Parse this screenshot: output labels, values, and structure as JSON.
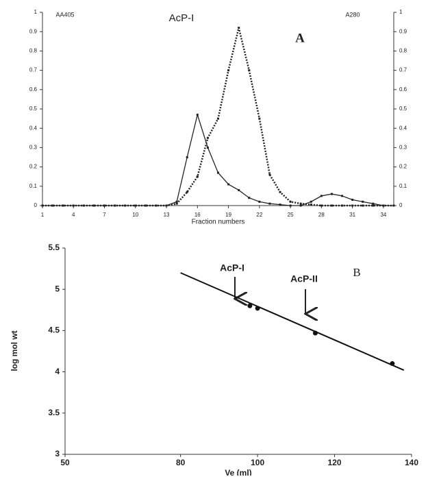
{
  "chart_data": [
    {
      "type": "line",
      "x_label": "Fraction numbers",
      "y_label": "AA405",
      "y2_label": "A280",
      "annotations": [
        "AcP-I",
        "A"
      ],
      "x": [
        1,
        2,
        3,
        4,
        5,
        6,
        7,
        8,
        9,
        10,
        11,
        12,
        13,
        14,
        15,
        16,
        17,
        18,
        19,
        20,
        21,
        22,
        23,
        24,
        25,
        26,
        27,
        28,
        29,
        30,
        31,
        32,
        33,
        34,
        35
      ],
      "xlim": [
        1,
        35
      ],
      "xticks": [
        1,
        4,
        7,
        10,
        13,
        16,
        19,
        22,
        25,
        28,
        31,
        34
      ],
      "ylim": [
        0,
        1
      ],
      "yticks": [
        0,
        0.1,
        0.2,
        0.3,
        0.4,
        0.5,
        0.6,
        0.7,
        0.8,
        0.9,
        1
      ],
      "y2lim": [
        0,
        1
      ],
      "y2ticks": [
        0,
        0.1,
        0.2,
        0.3,
        0.4,
        0.5,
        0.6,
        0.7,
        0.8,
        0.9,
        1
      ],
      "series": [
        {
          "color": "#222222",
          "style": "dotted",
          "axis": "y",
          "values": [
            0,
            0,
            0,
            0,
            0,
            0,
            0,
            0,
            0,
            0,
            0,
            0,
            0,
            0.01,
            0.07,
            0.15,
            0.35,
            0.45,
            0.7,
            0.92,
            0.7,
            0.45,
            0.16,
            0.07,
            0.02,
            0.01,
            0.005,
            0,
            0,
            0,
            0,
            0,
            0,
            0,
            0
          ]
        },
        {
          "color": "#222222",
          "style": "solid",
          "axis": "y2",
          "values": [
            0,
            0,
            0,
            0,
            0,
            0,
            0,
            0,
            0,
            0,
            0,
            0,
            0,
            0.02,
            0.25,
            0.47,
            0.3,
            0.17,
            0.11,
            0.08,
            0.04,
            0.02,
            0.01,
            0.005,
            0,
            0,
            0.02,
            0.05,
            0.06,
            0.05,
            0.03,
            0.02,
            0.01,
            0,
            0
          ]
        }
      ]
    },
    {
      "type": "scatter",
      "x_label": "Ve (ml)",
      "y_label": "log mol wt",
      "annotations": [
        "AcP-I",
        "AcP-II",
        "B"
      ],
      "xlim": [
        50,
        140
      ],
      "xticks": [
        50,
        80,
        100,
        120,
        140
      ],
      "ylim": [
        3,
        5.5
      ],
      "yticks": [
        3,
        3.5,
        4,
        4.5,
        5,
        5.5
      ],
      "color": "#111111",
      "x": [
        98,
        100,
        115,
        135
      ],
      "values": [
        4.8,
        4.77,
        4.47,
        4.1
      ],
      "fit_line": {
        "x": [
          80,
          138
        ],
        "values": [
          5.2,
          4.02
        ]
      }
    }
  ]
}
